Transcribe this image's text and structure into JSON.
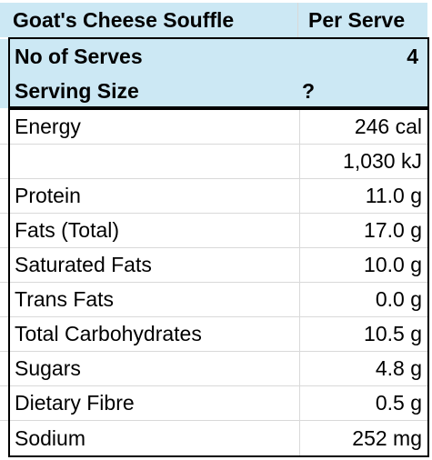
{
  "title_row": {
    "name": "Goat's Cheese Souffle",
    "header": "Per Serve"
  },
  "serves_row": {
    "label": "No of Serves",
    "value": "4"
  },
  "serving_size_row": {
    "label": "Serving Size",
    "value": "?"
  },
  "nutrients": [
    {
      "label": "Energy",
      "value": "246 cal"
    },
    {
      "label": "",
      "value": "1,030 kJ"
    },
    {
      "label": "Protein",
      "value": "11.0 g"
    },
    {
      "label": "Fats (Total)",
      "value": "17.0 g"
    },
    {
      "label": "Saturated Fats",
      "value": "10.0 g"
    },
    {
      "label": "Trans Fats",
      "value": "0.0 g"
    },
    {
      "label": "Total Carbohydrates",
      "value": "10.5 g"
    },
    {
      "label": "Sugars",
      "value": "4.8 g"
    },
    {
      "label": "Dietary Fibre",
      "value": "0.5 g"
    },
    {
      "label": "Sodium",
      "value": "252 mg"
    }
  ],
  "colors": {
    "header_fill": "#cce8f4",
    "gridline": "#d9d9d9",
    "border": "#000000"
  }
}
